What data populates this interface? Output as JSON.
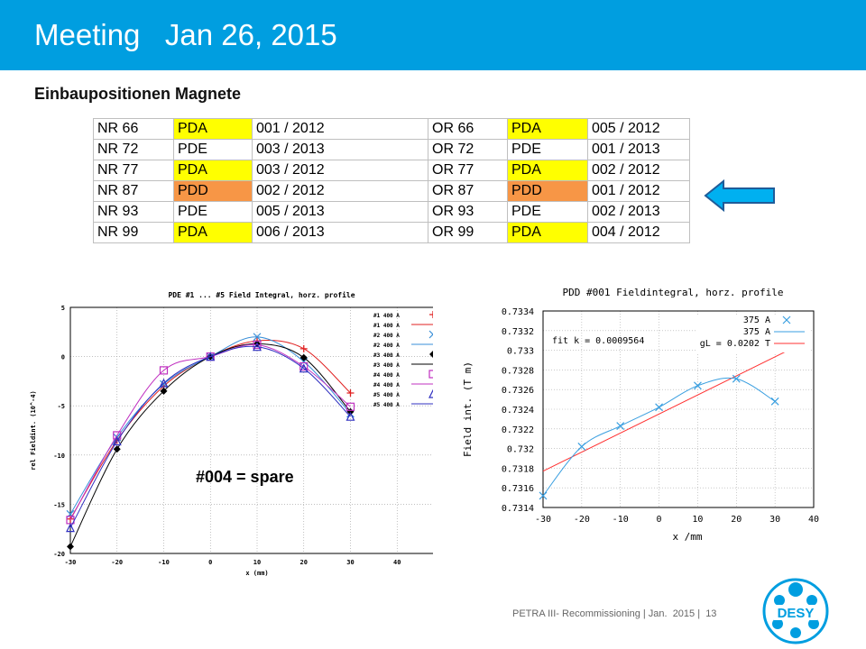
{
  "header": {
    "title": "Meeting   Jan 26, 2015",
    "color": "#009ee0"
  },
  "subtitle": "Einbaupositionen Magnete",
  "table": {
    "colors": {
      "PDA": "#ffff00",
      "PDD": "#f79646",
      "PDE": "#ffffff"
    },
    "rows": [
      {
        "nr": "NR 66",
        "nr_type": "PDA",
        "nr_date": "001 / 2012",
        "or": "OR 66",
        "or_type": "PDA",
        "or_date": "005 / 2012"
      },
      {
        "nr": "NR 72",
        "nr_type": "PDE",
        "nr_date": "003 / 2013",
        "or": "OR 72",
        "or_type": "PDE",
        "or_date": "001 / 2013"
      },
      {
        "nr": "NR 77",
        "nr_type": "PDA",
        "nr_date": "003 / 2012",
        "or": "OR 77",
        "or_type": "PDA",
        "or_date": "002 / 2012"
      },
      {
        "nr": "NR 87",
        "nr_type": "PDD",
        "nr_date": "002 / 2012",
        "or": "OR 87",
        "or_type": "PDD",
        "or_date": "001 / 2012"
      },
      {
        "nr": "NR 93",
        "nr_type": "PDE",
        "nr_date": "005 / 2013",
        "or": "OR 93",
        "or_type": "PDE",
        "or_date": "002 / 2013"
      },
      {
        "nr": "NR 99",
        "nr_type": "PDA",
        "nr_date": "006 / 2013",
        "or": "OR 99",
        "or_type": "PDA",
        "or_date": "004 / 2012"
      }
    ]
  },
  "arrow_icon": "left-arrow-icon",
  "annotation": "#004 = spare",
  "chart_data": [
    {
      "type": "scatter",
      "title": "PDE #1 ... #5 Field Integral, horz. profile",
      "xlabel": "x (mm)",
      "ylabel": "rel Fieldint. (10^-4)",
      "xlim": [
        -30,
        50
      ],
      "ylim": [
        -20,
        5
      ],
      "xticks": [
        "-30",
        "-20",
        "-10",
        "0",
        "10",
        "20",
        "30",
        "40",
        "50"
      ],
      "yticks": [
        "5",
        "0",
        "-5",
        "-10",
        "-15",
        "-20"
      ],
      "grid": true,
      "legend": "top-right",
      "x": [
        -30,
        -20,
        -10,
        0,
        10,
        20,
        30
      ],
      "series": [
        {
          "name": "#1 400 A",
          "marker": "+",
          "color": "#e02020",
          "values": [
            -16.5,
            -8.5,
            -3.0,
            0.0,
            1.6,
            0.8,
            -3.7
          ]
        },
        {
          "name": "#2 400 A",
          "marker": "x",
          "color": "#3a8fd8",
          "values": [
            -16.0,
            -8.2,
            -2.8,
            0.0,
            2.0,
            -0.5,
            -5.8
          ]
        },
        {
          "name": "#3 400 A",
          "marker": "diamond",
          "color": "#000000",
          "values": [
            -19.3,
            -9.4,
            -3.5,
            0.0,
            1.3,
            -0.1,
            -5.6
          ]
        },
        {
          "name": "#4 400 A",
          "marker": "square",
          "color": "#c030c0",
          "values": [
            -16.6,
            -8.0,
            -1.4,
            0.0,
            1.2,
            -1.0,
            -5.1
          ]
        },
        {
          "name": "#5 400 A",
          "marker": "triangle",
          "color": "#3030c0",
          "values": [
            -17.4,
            -8.6,
            -2.7,
            0.0,
            1.0,
            -1.2,
            -6.1
          ]
        }
      ]
    },
    {
      "type": "scatter",
      "title": "PDD #001 Fieldintegral, horz. profile",
      "xlabel": "x /mm",
      "ylabel": "Field int.  (T m)",
      "xlim": [
        -30,
        40
      ],
      "ylim": [
        0.7314,
        0.7334
      ],
      "xticks": [
        "-30",
        "-20",
        "-10",
        "0",
        "10",
        "20",
        "30",
        "40"
      ],
      "yticks": [
        "0.7334",
        "0.7332",
        "0.733",
        "0.7328",
        "0.7326",
        "0.7324",
        "0.7322",
        "0.732",
        "0.7318",
        "0.7316",
        "0.7314"
      ],
      "grid": true,
      "legend": "top-right",
      "annotations": [
        "fit k = 0.0009564",
        "gL = 0.0202 T"
      ],
      "x": [
        -30,
        -20,
        -10,
        0,
        10,
        20,
        30
      ],
      "series": [
        {
          "name": "375 A",
          "marker": "x",
          "color": "#3a9fe0",
          "values": [
            0.73152,
            0.73202,
            0.73223,
            0.73242,
            0.73264,
            0.73271,
            0.73248
          ]
        },
        {
          "name": "375 A",
          "style": "spline",
          "color": "#3a9fe0"
        },
        {
          "name": "gL = 0.0202 T",
          "style": "line",
          "color": "#ff3030",
          "fit": {
            "x": [
              -30,
              35
            ],
            "y": [
              0.73177,
              0.73303
            ]
          }
        }
      ]
    }
  ],
  "footer": "PETRA III- Recommissioning | Jan.  2015 |  13",
  "logo": {
    "text": "DESY",
    "color": "#009ee0"
  }
}
